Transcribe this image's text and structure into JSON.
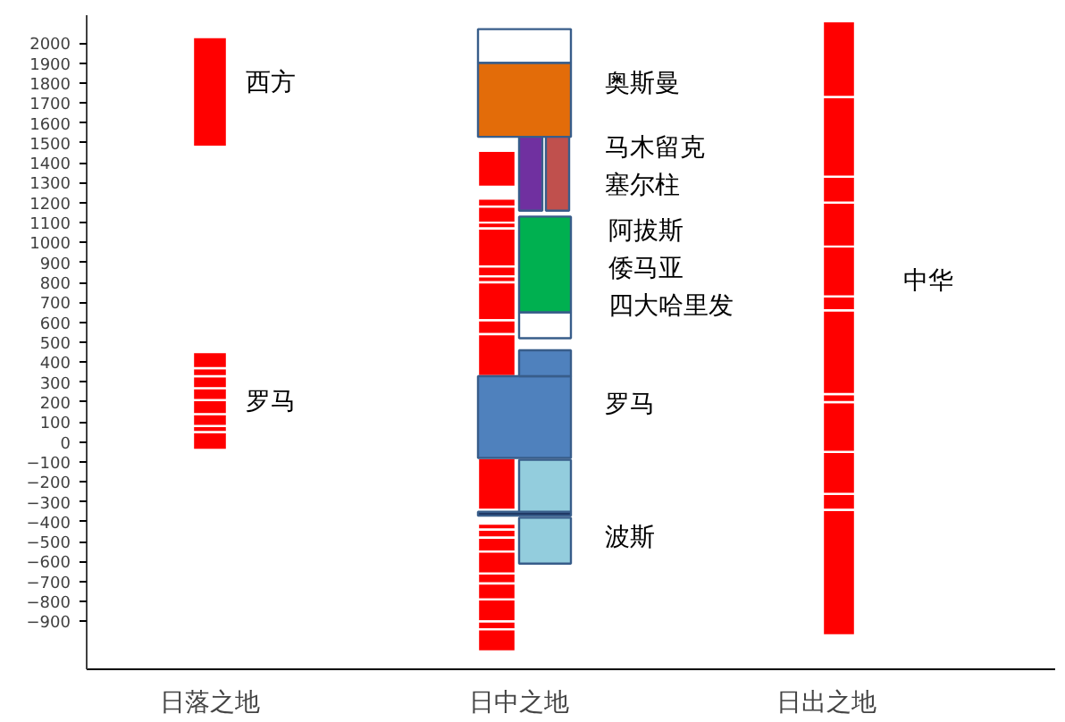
{
  "chart_data": {
    "type": "bar",
    "categories": [
      "日落之地",
      "日中之地",
      "日出之地"
    ],
    "ylim": [
      -1140,
      2140
    ],
    "yticks": [
      -900,
      -800,
      -700,
      -600,
      -500,
      -400,
      -300,
      -200,
      -100,
      0,
      100,
      200,
      300,
      400,
      500,
      600,
      700,
      800,
      900,
      1000,
      1100,
      1200,
      1300,
      1400,
      1500,
      1600,
      1700,
      1800,
      1900,
      2000
    ],
    "grid": false,
    "series": [
      {
        "color": "#ff0000",
        "base": [
          1480,
          1280,
          -970
        ],
        "values": [
          550,
          180,
          630
        ]
      },
      {
        "color": "#ff0000",
        "base": [
          -40,
          1180,
          -340
        ],
        "values": [
          90,
          40,
          80
        ]
      },
      {
        "color": "#ff0000",
        "base": [
          50,
          1100,
          -260
        ],
        "values": [
          30,
          80,
          210
        ]
      },
      {
        "color": "#ff0000",
        "base": [
          80,
          1070,
          -50
        ],
        "values": [
          60,
          30,
          250
        ]
      },
      {
        "color": "#ff0000",
        "base": [
          140,
          880,
          200
        ],
        "values": [
          70,
          190,
          40
        ]
      },
      {
        "color": "#ff0000",
        "base": [
          210,
          830,
          240
        ],
        "values": [
          60,
          50,
          420
        ]
      },
      {
        "color": "#ff0000",
        "base": [
          270,
          800,
          660
        ],
        "values": [
          60,
          30,
          70
        ]
      },
      {
        "color": "#ff0000",
        "base": [
          330,
          610,
          730
        ],
        "values": [
          40,
          190,
          250
        ]
      },
      {
        "color": "#ff0000",
        "base": [
          370,
          540,
          980
        ],
        "values": [
          80,
          70,
          220
        ]
      },
      {
        "color": "#ff0000",
        "base": [
          null,
          330,
          1200
        ],
        "values": [
          null,
          210,
          130
        ]
      },
      {
        "color": "#ff0000",
        "base": [
          null,
          -340,
          1330
        ],
        "values": [
          null,
          260,
          400
        ]
      },
      {
        "color": "#ff0000",
        "base": [
          null,
          -440,
          1730
        ],
        "values": [
          null,
          30,
          380
        ]
      },
      {
        "color": "#ff0000",
        "base": [
          null,
          -480,
          null
        ],
        "values": [
          null,
          40,
          null
        ]
      },
      {
        "color": "#ff0000",
        "base": [
          null,
          -550,
          null
        ],
        "values": [
          null,
          70,
          null
        ]
      },
      {
        "color": "#ff0000",
        "base": [
          null,
          -660,
          null
        ],
        "values": [
          null,
          110,
          null
        ]
      },
      {
        "color": "#ff0000",
        "base": [
          null,
          -710,
          null
        ],
        "values": [
          null,
          50,
          null
        ]
      },
      {
        "color": "#ff0000",
        "base": [
          null,
          -790,
          null
        ],
        "values": [
          null,
          80,
          null
        ]
      },
      {
        "color": "#ff0000",
        "base": [
          null,
          -900,
          null
        ],
        "values": [
          null,
          110,
          null
        ]
      },
      {
        "color": "#ff0000",
        "base": [
          null,
          -940,
          null
        ],
        "values": [
          null,
          40,
          null
        ]
      },
      {
        "color": "#ff0000",
        "base": [
          null,
          -1050,
          null
        ],
        "values": [
          null,
          110,
          null
        ]
      },
      {
        "color": "#ffffff",
        "base": [
          null,
          1900,
          null
        ],
        "values": [
          null,
          170,
          null
        ]
      },
      {
        "color": "#e36c09",
        "base": [
          null,
          1530,
          null
        ],
        "values": [
          null,
          370,
          null
        ]
      },
      {
        "color": "#4f81bd",
        "base": [
          null,
          -80,
          null
        ],
        "values": [
          null,
          410,
          null
        ]
      },
      {
        "color": "#1f3864",
        "base": [
          null,
          -370,
          null
        ],
        "values": [
          null,
          20,
          null
        ]
      },
      {
        "color": "#7030a0",
        "base": [
          null,
          1160,
          null
        ],
        "values": [
          null,
          370,
          null
        ]
      },
      {
        "color": "#ffffff",
        "base": [
          null,
          520,
          null
        ],
        "values": [
          null,
          130,
          null
        ]
      },
      {
        "color": "#00b050",
        "base": [
          null,
          650,
          null
        ],
        "values": [
          null,
          480,
          null
        ]
      },
      {
        "color": "#4f81bd",
        "base": [
          null,
          330,
          null
        ],
        "values": [
          null,
          130,
          null
        ]
      },
      {
        "color": "#93cddd",
        "base": [
          null,
          -350,
          null
        ],
        "values": [
          null,
          260,
          null
        ]
      },
      {
        "color": "#93cddd",
        "base": [
          null,
          -610,
          null
        ],
        "values": [
          null,
          230,
          null
        ]
      },
      {
        "color": "#c0504d",
        "base": [
          null,
          1160,
          null
        ],
        "values": [
          null,
          370,
          null
        ]
      }
    ],
    "annotations": [
      "西方",
      "罗马",
      "奥斯曼",
      "马木留克",
      "塞尔柱",
      "阿拔斯",
      "倭马亚",
      "四大哈里发",
      "罗马",
      "波斯",
      "中华"
    ]
  }
}
